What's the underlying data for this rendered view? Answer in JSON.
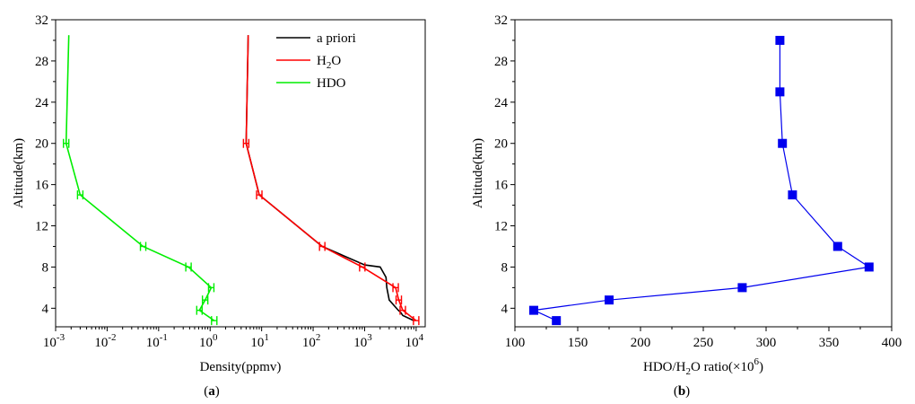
{
  "chart_data": [
    {
      "type": "line",
      "panel_label": "(a)",
      "xlabel": "Density(ppmv)",
      "ylabel": "Altitude(km)",
      "x_scale": "log",
      "xlim": [
        0.001,
        15000
      ],
      "ylim": [
        2.2,
        32
      ],
      "x_ticks": [
        {
          "value": 0.001,
          "base": "10",
          "exp": "-3"
        },
        {
          "value": 0.01,
          "base": "10",
          "exp": "-2"
        },
        {
          "value": 0.1,
          "base": "10",
          "exp": "-1"
        },
        {
          "value": 1,
          "base": "10",
          "exp": "0"
        },
        {
          "value": 10,
          "base": "10",
          "exp": "1"
        },
        {
          "value": 100,
          "base": "10",
          "exp": "2"
        },
        {
          "value": 1000,
          "base": "10",
          "exp": "3"
        },
        {
          "value": 10000,
          "base": "10",
          "exp": "4"
        }
      ],
      "y_ticks": [
        4,
        8,
        12,
        16,
        20,
        24,
        28,
        32
      ],
      "legend": {
        "position": "top-right"
      },
      "series": [
        {
          "name": "a priori",
          "color": "#000000",
          "x": [
            9000,
            5500,
            5000,
            4500,
            3000,
            2700,
            2600,
            2000,
            1000,
            150,
            9,
            5,
            5.5
          ],
          "y": [
            2.8,
            3.3,
            3.6,
            3.8,
            4.8,
            6.0,
            7.0,
            8.0,
            8.2,
            10.0,
            15.0,
            20.0,
            30.5
          ],
          "error_bars": false
        },
        {
          "name": "H2O",
          "name_parts": {
            "main": "H",
            "sub": "2",
            "tail": "O"
          },
          "color": "#ff0000",
          "x": [
            10000,
            5500,
            4600,
            4000,
            900,
            150,
            9,
            5,
            5.5
          ],
          "y": [
            2.8,
            3.8,
            4.8,
            6.0,
            8.0,
            10.0,
            15.0,
            20.0,
            30.5
          ],
          "error_bars": true
        },
        {
          "name": "HDO",
          "color": "#00ee00",
          "x": [
            1.2,
            0.62,
            0.8,
            1.05,
            0.38,
            0.05,
            0.003,
            0.0016,
            0.0018
          ],
          "y": [
            2.8,
            3.8,
            4.8,
            6.0,
            8.0,
            10.0,
            15.0,
            20.0,
            30.5
          ],
          "error_bars": true
        }
      ]
    },
    {
      "type": "line",
      "panel_label": "(b)",
      "xlabel": "HDO/H2O ratio(×10^6)",
      "xlabel_parts": {
        "a": "HDO/H",
        "sub": "2",
        "b": "O ratio(×10",
        "sup": "6",
        "c": ")"
      },
      "ylabel": "Altitude(km)",
      "xlim": [
        100,
        400
      ],
      "ylim": [
        2.2,
        32
      ],
      "x_ticks": [
        100,
        150,
        200,
        250,
        300,
        350,
        400
      ],
      "y_ticks": [
        4,
        8,
        12,
        16,
        20,
        24,
        28,
        32
      ],
      "series": [
        {
          "color": "#0000ee",
          "marker": "square",
          "x": [
            133,
            115,
            175,
            281,
            382,
            357,
            321,
            313,
            311,
            311
          ],
          "y": [
            2.8,
            3.8,
            4.8,
            6.0,
            8.0,
            10.0,
            15.0,
            20.0,
            25.0,
            30.0
          ]
        }
      ]
    }
  ]
}
